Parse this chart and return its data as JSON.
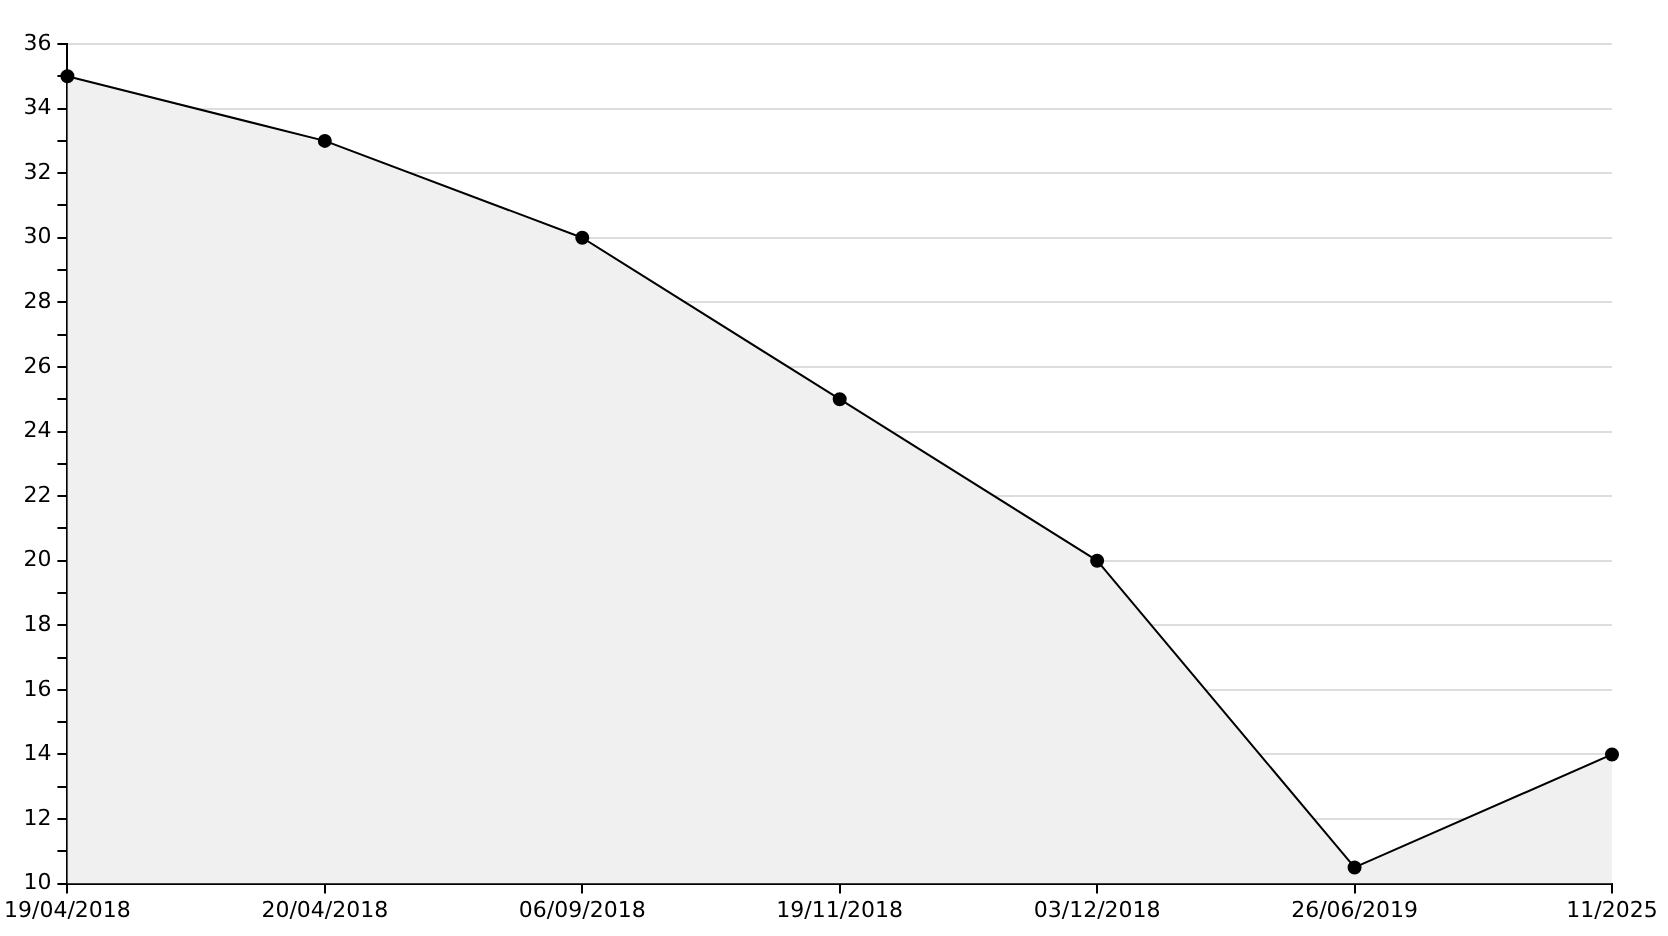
{
  "chart_data": {
    "type": "area",
    "categories": [
      "19/04/2018",
      "20/04/2018",
      "06/09/2018",
      "19/11/2018",
      "03/12/2018",
      "26/06/2019",
      "11/2025"
    ],
    "series": [
      {
        "color": "#000000",
        "values": [
          35,
          33,
          30,
          25,
          20,
          10.5,
          14
        ]
      }
    ],
    "ylim": [
      10,
      36
    ],
    "yticks": [
      10,
      {
        "value": 11,
        "label": null
      },
      12,
      {
        "value": 13,
        "label": null
      },
      14,
      {
        "value": 15,
        "label": null
      },
      16,
      {
        "value": 17,
        "label": null
      },
      18,
      {
        "value": 19,
        "label": null
      },
      20,
      {
        "value": 21,
        "label": null
      },
      22,
      {
        "value": 23,
        "label": null
      },
      24,
      {
        "value": 25,
        "label": null
      },
      26,
      {
        "value": 27,
        "label": null
      },
      28,
      {
        "value": 29,
        "label": null
      },
      30,
      {
        "value": 31,
        "label": null
      },
      32,
      {
        "value": 33,
        "label": null
      },
      34,
      {
        "value": 35,
        "label": null
      },
      36
    ],
    "grid": "y",
    "marker": "circle",
    "legend": false
  }
}
